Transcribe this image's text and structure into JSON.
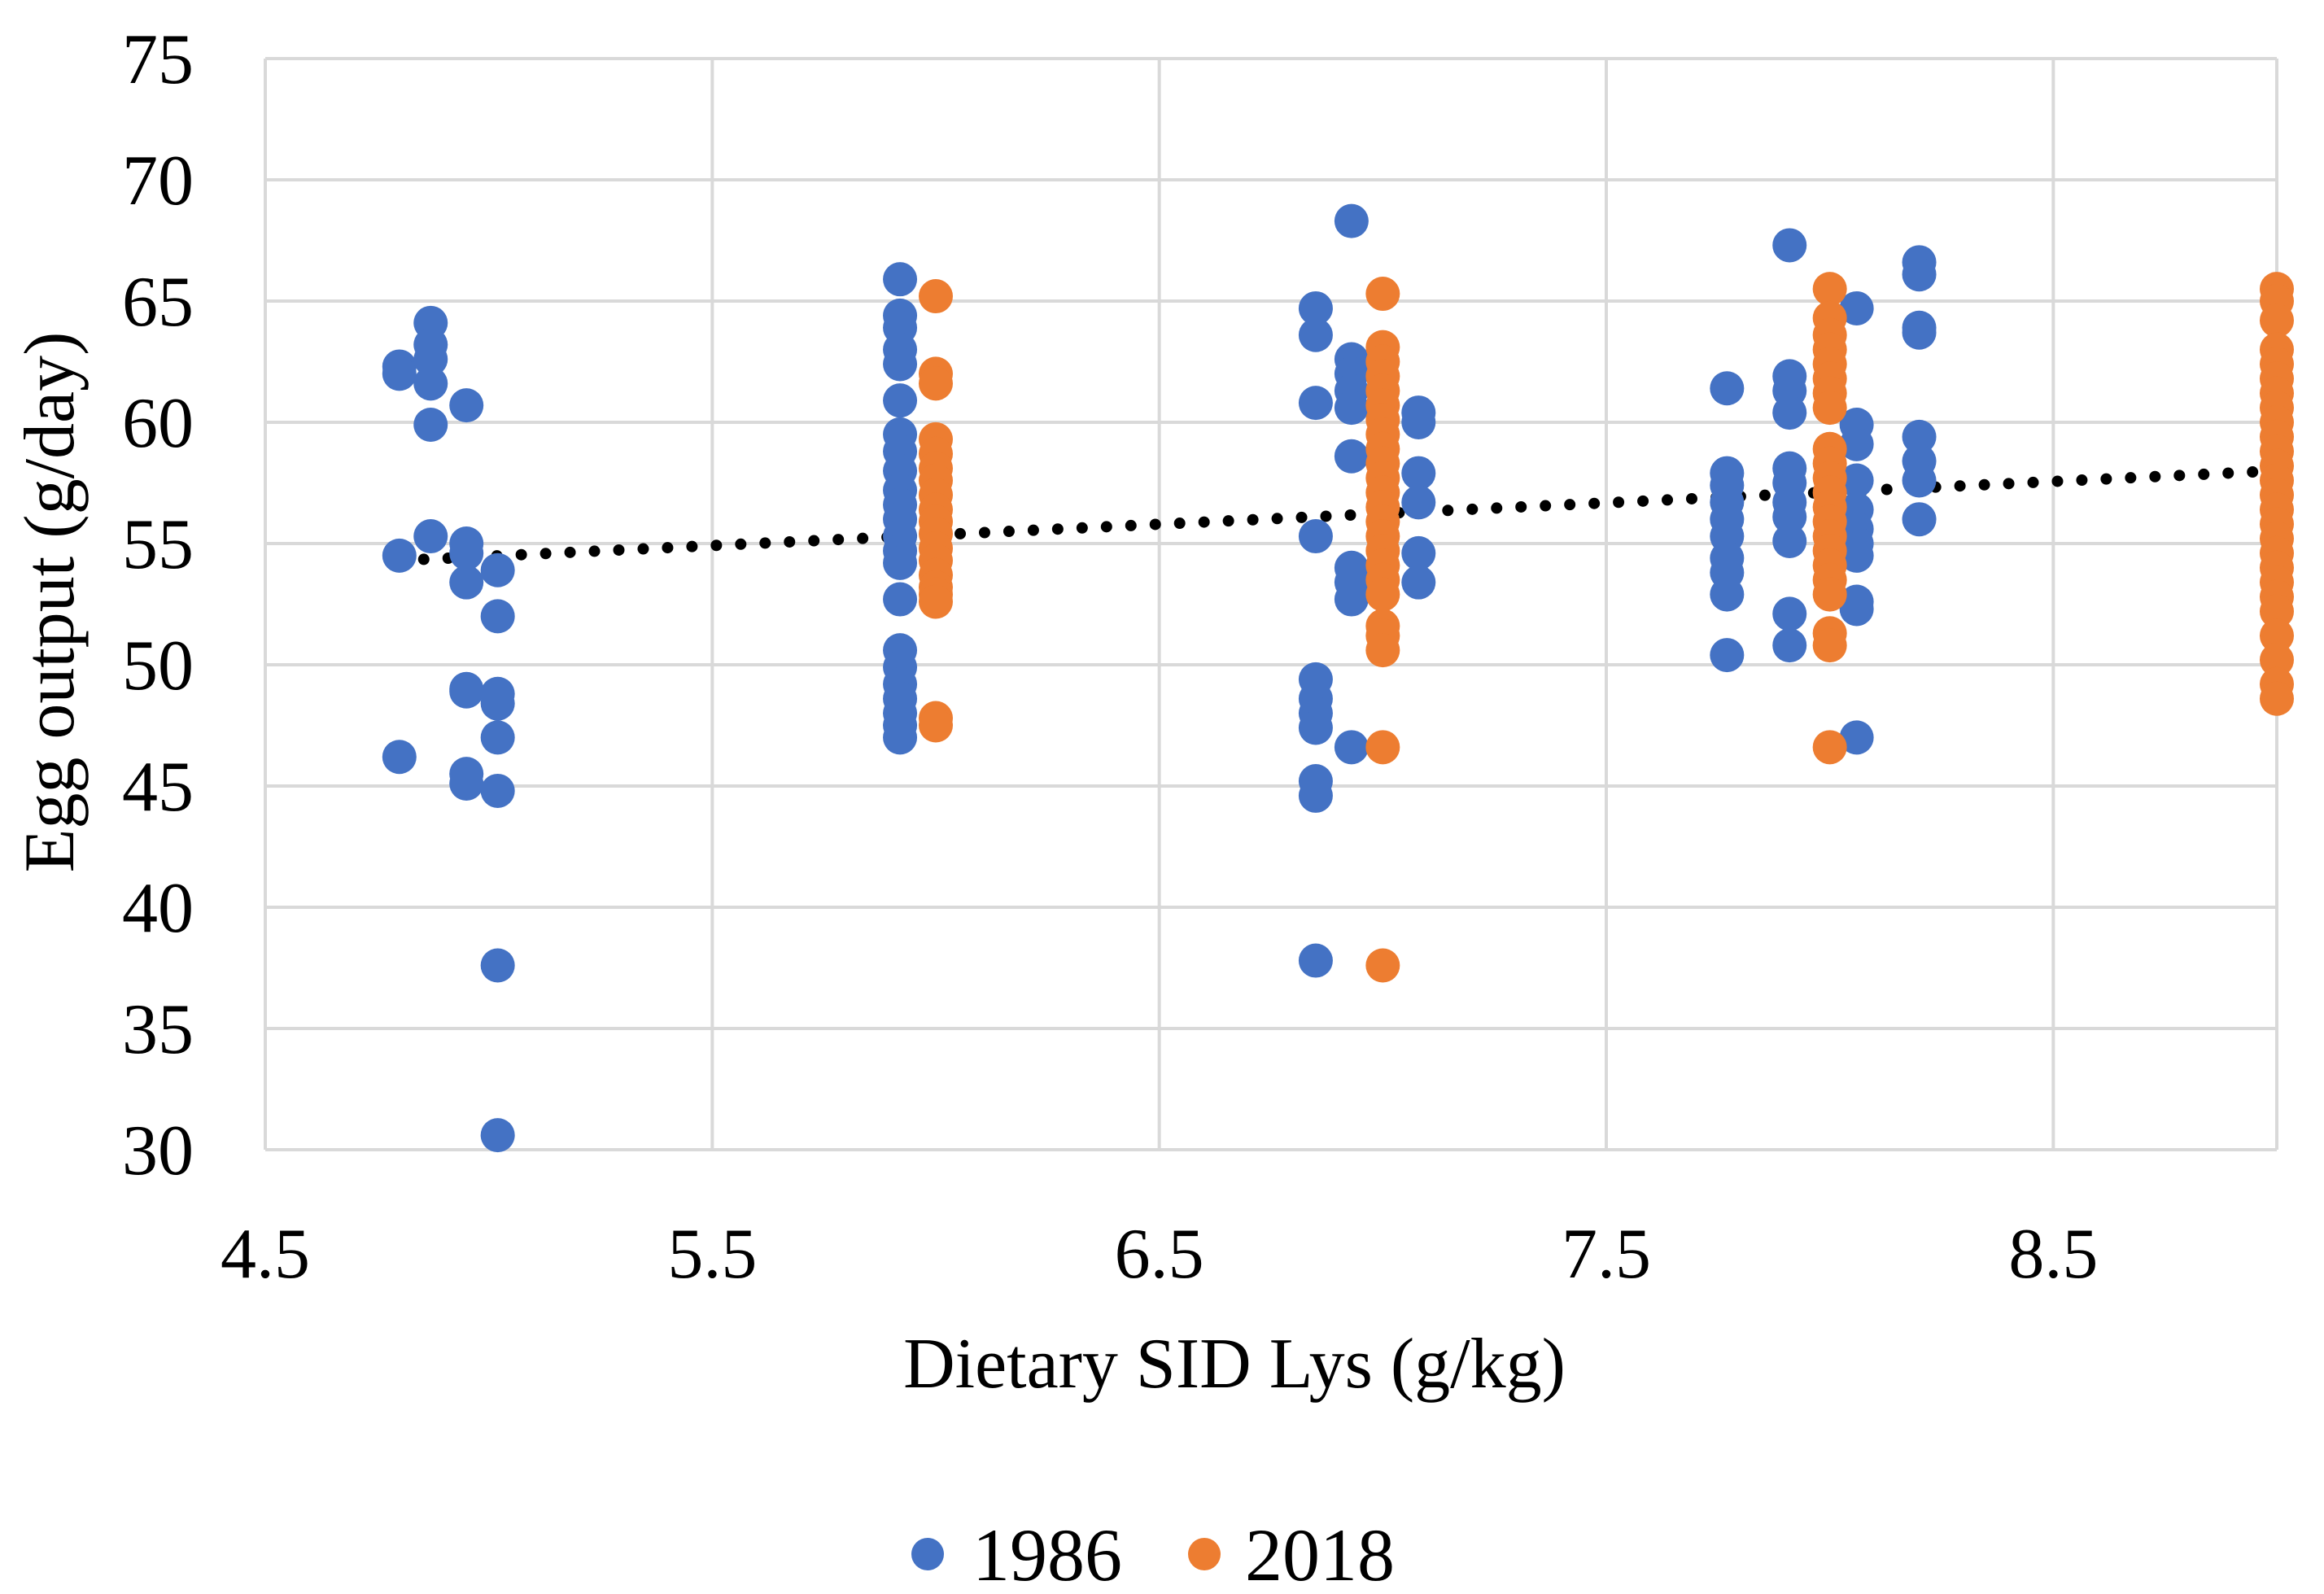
{
  "chart_data": {
    "type": "scatter",
    "title": "",
    "xlabel": "Dietary SID Lys (g/kg)",
    "ylabel": "Egg output (g/day)",
    "xlim": [
      4.5,
      9.0
    ],
    "ylim": [
      30,
      75
    ],
    "x_ticks": [
      "4.5",
      "5.5",
      "6.5",
      "7.5",
      "8.5"
    ],
    "x_tick_values": [
      4.5,
      5.5,
      6.5,
      7.5,
      8.5
    ],
    "x_grid_values": [
      4.5,
      5.5,
      6.5,
      7.5,
      8.5,
      9.0
    ],
    "y_ticks": [
      "30",
      "35",
      "40",
      "45",
      "50",
      "55",
      "60",
      "65",
      "70",
      "75"
    ],
    "y_tick_values": [
      30,
      35,
      40,
      45,
      50,
      55,
      60,
      65,
      70,
      75
    ],
    "grid": true,
    "legend_position": "bottom",
    "colors": {
      "series_1986": "#4472C4",
      "series_2018": "#ED7D31",
      "trendline": "#000000",
      "grid": "#D9D9D9"
    },
    "series": [
      {
        "name": "1986",
        "color": "#4472C4",
        "points": [
          [
            4.8,
            54.5
          ],
          [
            4.8,
            62.3
          ],
          [
            4.8,
            62.0
          ],
          [
            4.8,
            46.2
          ],
          [
            4.87,
            64.1
          ],
          [
            4.87,
            63.2
          ],
          [
            4.87,
            62.6
          ],
          [
            4.87,
            61.6
          ],
          [
            4.87,
            59.9
          ],
          [
            4.87,
            55.3
          ],
          [
            4.95,
            60.7
          ],
          [
            4.95,
            55.0
          ],
          [
            4.95,
            54.6
          ],
          [
            4.95,
            53.4
          ],
          [
            4.95,
            49.0
          ],
          [
            4.95,
            48.9
          ],
          [
            4.95,
            45.5
          ],
          [
            4.95,
            45.1
          ],
          [
            5.02,
            53.9
          ],
          [
            5.02,
            52.0
          ],
          [
            5.02,
            48.8
          ],
          [
            5.02,
            48.4
          ],
          [
            5.02,
            47.0
          ],
          [
            5.02,
            44.8
          ],
          [
            5.02,
            37.6
          ],
          [
            5.02,
            30.6
          ],
          [
            5.92,
            65.9
          ],
          [
            5.92,
            64.4
          ],
          [
            5.92,
            63.9
          ],
          [
            5.92,
            63.0
          ],
          [
            5.92,
            62.4
          ],
          [
            5.92,
            60.9
          ],
          [
            5.92,
            59.5
          ],
          [
            5.92,
            58.8
          ],
          [
            5.92,
            58.0
          ],
          [
            5.92,
            57.2
          ],
          [
            5.92,
            56.6
          ],
          [
            5.92,
            56.0
          ],
          [
            5.92,
            55.3
          ],
          [
            5.92,
            54.7
          ],
          [
            5.92,
            54.2
          ],
          [
            5.92,
            52.7
          ],
          [
            5.92,
            50.6
          ],
          [
            5.92,
            49.9
          ],
          [
            5.92,
            49.2
          ],
          [
            5.92,
            48.6
          ],
          [
            5.92,
            48.0
          ],
          [
            5.92,
            47.5
          ],
          [
            5.92,
            47.0
          ],
          [
            6.85,
            64.7
          ],
          [
            6.85,
            63.6
          ],
          [
            6.85,
            60.8
          ],
          [
            6.85,
            55.3
          ],
          [
            6.85,
            49.4
          ],
          [
            6.85,
            48.6
          ],
          [
            6.85,
            48.0
          ],
          [
            6.85,
            47.4
          ],
          [
            6.85,
            45.2
          ],
          [
            6.85,
            44.6
          ],
          [
            6.85,
            37.8
          ],
          [
            6.93,
            68.3
          ],
          [
            6.93,
            62.6
          ],
          [
            6.93,
            62.0
          ],
          [
            6.93,
            61.3
          ],
          [
            6.93,
            60.6
          ],
          [
            6.93,
            58.6
          ],
          [
            6.93,
            54.0
          ],
          [
            6.93,
            53.4
          ],
          [
            6.93,
            52.7
          ],
          [
            6.93,
            46.6
          ],
          [
            7.08,
            60.4
          ],
          [
            7.08,
            60.0
          ],
          [
            7.08,
            57.9
          ],
          [
            7.08,
            56.7
          ],
          [
            7.08,
            54.6
          ],
          [
            7.08,
            53.4
          ],
          [
            7.77,
            61.4
          ],
          [
            7.77,
            57.9
          ],
          [
            7.77,
            57.4
          ],
          [
            7.77,
            56.7
          ],
          [
            7.77,
            56.0
          ],
          [
            7.77,
            55.3
          ],
          [
            7.77,
            54.4
          ],
          [
            7.77,
            53.8
          ],
          [
            7.77,
            52.9
          ],
          [
            7.77,
            50.4
          ],
          [
            7.91,
            67.3
          ],
          [
            7.91,
            61.9
          ],
          [
            7.91,
            61.3
          ],
          [
            7.91,
            60.4
          ],
          [
            7.91,
            58.1
          ],
          [
            7.91,
            57.5
          ],
          [
            7.91,
            56.7
          ],
          [
            7.91,
            56.1
          ],
          [
            7.91,
            55.1
          ],
          [
            7.91,
            52.1
          ],
          [
            7.91,
            50.8
          ],
          [
            8.06,
            64.7
          ],
          [
            8.06,
            59.9
          ],
          [
            8.06,
            59.1
          ],
          [
            8.06,
            57.6
          ],
          [
            8.06,
            56.4
          ],
          [
            8.06,
            55.6
          ],
          [
            8.06,
            55.0
          ],
          [
            8.06,
            54.5
          ],
          [
            8.06,
            52.6
          ],
          [
            8.06,
            52.3
          ],
          [
            8.06,
            47.0
          ],
          [
            8.2,
            66.6
          ],
          [
            8.2,
            66.1
          ],
          [
            8.2,
            63.9
          ],
          [
            8.2,
            63.7
          ],
          [
            8.2,
            59.4
          ],
          [
            8.2,
            58.4
          ],
          [
            8.2,
            57.6
          ],
          [
            8.2,
            56.0
          ]
        ]
      },
      {
        "name": "2018",
        "color": "#ED7D31",
        "points": [
          [
            6.0,
            65.2
          ],
          [
            6.0,
            62.0
          ],
          [
            6.0,
            61.6
          ],
          [
            6.0,
            59.3
          ],
          [
            6.0,
            58.7
          ],
          [
            6.0,
            58.1
          ],
          [
            6.0,
            57.6
          ],
          [
            6.0,
            57.0
          ],
          [
            6.0,
            56.4
          ],
          [
            6.0,
            55.9
          ],
          [
            6.0,
            55.4
          ],
          [
            6.0,
            54.8
          ],
          [
            6.0,
            54.3
          ],
          [
            6.0,
            53.7
          ],
          [
            6.0,
            53.2
          ],
          [
            6.0,
            52.9
          ],
          [
            6.0,
            52.6
          ],
          [
            6.0,
            47.8
          ],
          [
            6.0,
            47.5
          ],
          [
            7.0,
            65.3
          ],
          [
            7.0,
            63.1
          ],
          [
            7.0,
            62.5
          ],
          [
            7.0,
            61.9
          ],
          [
            7.0,
            61.3
          ],
          [
            7.0,
            60.7
          ],
          [
            7.0,
            60.1
          ],
          [
            7.0,
            59.5
          ],
          [
            7.0,
            58.9
          ],
          [
            7.0,
            58.3
          ],
          [
            7.0,
            57.7
          ],
          [
            7.0,
            57.1
          ],
          [
            7.0,
            56.5
          ],
          [
            7.0,
            55.9
          ],
          [
            7.0,
            55.3
          ],
          [
            7.0,
            54.7
          ],
          [
            7.0,
            54.1
          ],
          [
            7.0,
            53.5
          ],
          [
            7.0,
            52.9
          ],
          [
            7.0,
            51.6
          ],
          [
            7.0,
            51.2
          ],
          [
            7.0,
            50.6
          ],
          [
            7.0,
            46.6
          ],
          [
            7.0,
            37.6
          ],
          [
            8.0,
            65.5
          ],
          [
            8.0,
            64.3
          ],
          [
            8.0,
            63.6
          ],
          [
            8.0,
            63.0
          ],
          [
            8.0,
            62.4
          ],
          [
            8.0,
            61.8
          ],
          [
            8.0,
            61.2
          ],
          [
            8.0,
            60.6
          ],
          [
            8.0,
            58.9
          ],
          [
            8.0,
            58.3
          ],
          [
            8.0,
            57.7
          ],
          [
            8.0,
            57.1
          ],
          [
            8.0,
            56.5
          ],
          [
            8.0,
            55.9
          ],
          [
            8.0,
            55.3
          ],
          [
            8.0,
            54.7
          ],
          [
            8.0,
            54.1
          ],
          [
            8.0,
            53.5
          ],
          [
            8.0,
            52.9
          ],
          [
            8.0,
            51.3
          ],
          [
            8.0,
            50.8
          ],
          [
            8.0,
            46.6
          ],
          [
            9.0,
            65.5
          ],
          [
            9.0,
            65.0
          ],
          [
            9.0,
            64.2
          ],
          [
            9.0,
            63.0
          ],
          [
            9.0,
            62.4
          ],
          [
            9.0,
            61.8
          ],
          [
            9.0,
            61.2
          ],
          [
            9.0,
            60.6
          ],
          [
            9.0,
            60.0
          ],
          [
            9.0,
            59.4
          ],
          [
            9.0,
            58.8
          ],
          [
            9.0,
            58.2
          ],
          [
            9.0,
            57.6
          ],
          [
            9.0,
            57.0
          ],
          [
            9.0,
            56.4
          ],
          [
            9.0,
            55.8
          ],
          [
            9.0,
            55.2
          ],
          [
            9.0,
            54.6
          ],
          [
            9.0,
            54.0
          ],
          [
            9.0,
            53.4
          ],
          [
            9.0,
            52.8
          ],
          [
            9.0,
            52.2
          ],
          [
            9.0,
            51.2
          ],
          [
            9.0,
            50.2
          ],
          [
            9.0,
            49.2
          ],
          [
            9.0,
            48.6
          ]
        ]
      }
    ],
    "trendline": {
      "style": "dotted",
      "x_start": 4.8,
      "x_end": 9.0,
      "y_start": 54.3,
      "y_end": 58.0
    }
  },
  "legend": {
    "items": [
      "1986",
      "2018"
    ]
  }
}
